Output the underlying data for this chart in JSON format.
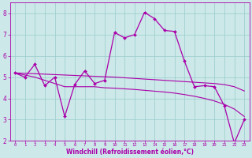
{
  "xlabel": "Windchill (Refroidissement éolien,°C)",
  "bg_color": "#cce8e8",
  "line_color": "#aa00aa",
  "grid_color": "#99cccc",
  "x_data": [
    0,
    1,
    2,
    3,
    4,
    5,
    6,
    7,
    8,
    9,
    10,
    11,
    12,
    13,
    14,
    15,
    16,
    17,
    18,
    19,
    20,
    21,
    22,
    23
  ],
  "y_main": [
    5.2,
    5.0,
    5.6,
    4.6,
    5.0,
    3.15,
    4.65,
    5.3,
    4.7,
    4.85,
    7.1,
    6.85,
    7.0,
    8.05,
    7.75,
    7.2,
    7.15,
    5.75,
    4.55,
    4.6,
    4.55,
    3.65,
    1.9,
    3.0
  ],
  "y_trend_upper": [
    5.2,
    5.18,
    5.16,
    5.14,
    5.12,
    5.1,
    5.08,
    5.06,
    5.04,
    5.02,
    5.0,
    4.97,
    4.94,
    4.91,
    4.88,
    4.85,
    4.82,
    4.79,
    4.76,
    4.73,
    4.7,
    4.65,
    4.55,
    4.35
  ],
  "y_trend_lower": [
    5.2,
    5.1,
    5.0,
    4.85,
    4.7,
    4.55,
    4.55,
    4.55,
    4.55,
    4.5,
    4.48,
    4.45,
    4.42,
    4.38,
    4.34,
    4.3,
    4.25,
    4.18,
    4.1,
    4.0,
    3.88,
    3.72,
    3.5,
    3.15
  ],
  "ylim": [
    2,
    8.5
  ],
  "xlim": [
    0,
    23
  ],
  "yticks": [
    2,
    3,
    4,
    5,
    6,
    7,
    8
  ]
}
